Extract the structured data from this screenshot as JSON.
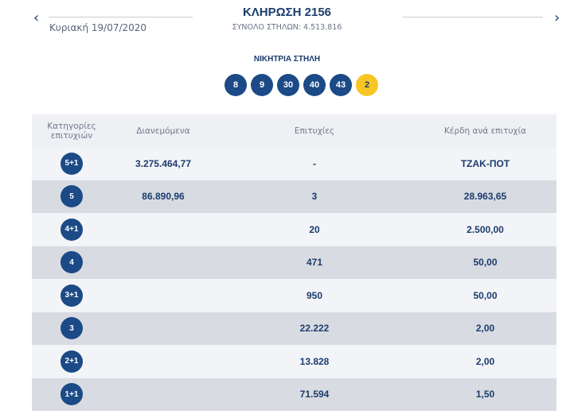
{
  "nav": {
    "prev_icon": "chevron-left-icon",
    "next_icon": "chevron-right-icon",
    "prev_glyph": "‹",
    "next_glyph": "›"
  },
  "prev_draw": {
    "date": "Κυριακή 19/07/2020"
  },
  "draw": {
    "title": "ΚΛΗΡΩΣΗ 2156",
    "subtitle": "ΣΥΝΟΛΟ ΣΤΗΛΩΝ: 4.513.816"
  },
  "winning": {
    "label": "ΝΙΚΗΤΡΙΑ ΣΤΗΛΗ",
    "numbers": [
      "8",
      "9",
      "30",
      "40",
      "43"
    ],
    "joker": "2",
    "colors": {
      "number": "#1b4a86",
      "joker": "#f7c623"
    }
  },
  "table": {
    "headers": [
      "Κατηγορίες επιτυχιών",
      "Διανεμόμενα",
      "Επιτυχίες",
      "Κέρδη ανά επιτυχία"
    ],
    "rows": [
      {
        "category": "5+1",
        "pool": "3.275.464,77",
        "winners": "-",
        "prize": "ΤΖΑΚ-ΠΟΤ"
      },
      {
        "category": "5",
        "pool": "86.890,96",
        "winners": "3",
        "prize": "28.963,65"
      },
      {
        "category": "4+1",
        "pool": "",
        "winners": "20",
        "prize": "2.500,00"
      },
      {
        "category": "4",
        "pool": "",
        "winners": "471",
        "prize": "50,00"
      },
      {
        "category": "3+1",
        "pool": "",
        "winners": "950",
        "prize": "50,00"
      },
      {
        "category": "3",
        "pool": "",
        "winners": "22.222",
        "prize": "2,00"
      },
      {
        "category": "2+1",
        "pool": "",
        "winners": "13.828",
        "prize": "2,00"
      },
      {
        "category": "1+1",
        "pool": "",
        "winners": "71.594",
        "prize": "1,50"
      }
    ]
  }
}
